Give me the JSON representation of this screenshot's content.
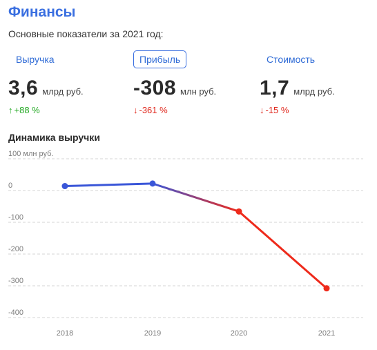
{
  "header": {
    "title": "Финансы",
    "subtitle": "Основные показатели за 2021 год:"
  },
  "tabs": [
    {
      "label": "Выручка",
      "active": false
    },
    {
      "label": "Прибыль",
      "active": true
    },
    {
      "label": "Стоимость",
      "active": false
    }
  ],
  "metrics": [
    {
      "value": "3,6",
      "unit": "млрд руб.",
      "change": "+88 %",
      "direction": "up",
      "color": "#22a822"
    },
    {
      "value": "-308",
      "unit": "млн руб.",
      "change": "-361 %",
      "direction": "down",
      "color": "#e0261b"
    },
    {
      "value": "1,7",
      "unit": "млрд руб.",
      "change": "-15 %",
      "direction": "down",
      "color": "#e0261b"
    }
  ],
  "icons": {
    "up": "arrow-up-icon",
    "down": "arrow-down-icon"
  },
  "chart_section_title": "Динамика выручки",
  "colors": {
    "accent": "#3a6fe0",
    "positive": "#22a822",
    "negative": "#e0261b",
    "line_positive": "#3a56d8",
    "line_negative": "#ee2a1b"
  },
  "chart_data": {
    "type": "line",
    "x": [
      "2018",
      "2019",
      "2020",
      "2021"
    ],
    "series": [
      {
        "values": [
          14,
          22,
          -66,
          -308
        ]
      }
    ],
    "yticks": [
      100,
      0,
      -100,
      -200,
      -300,
      -400
    ],
    "ytick_labels": [
      "100 млн руб.",
      "0",
      "-100",
      "-200",
      "-300",
      "-400"
    ],
    "ylim": [
      -400,
      100
    ],
    "grid": true
  }
}
